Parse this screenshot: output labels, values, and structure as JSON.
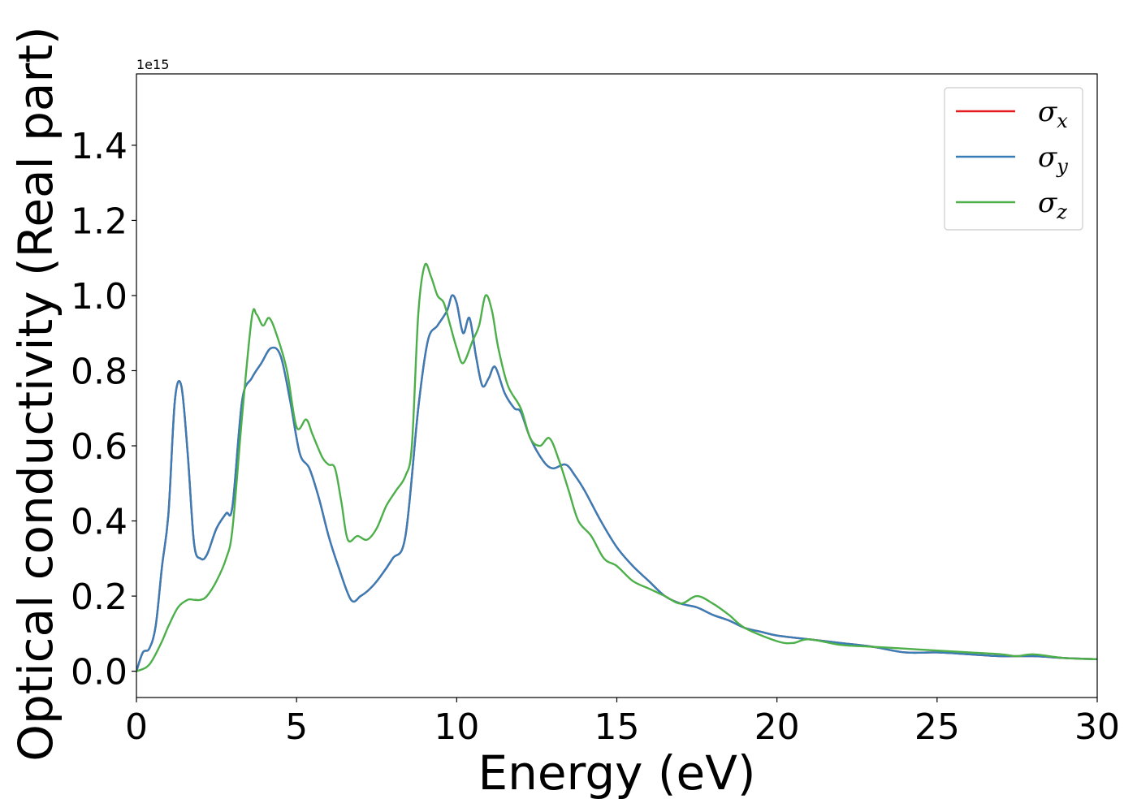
{
  "chart_data": {
    "type": "line",
    "xlabel": "Energy (eV)",
    "ylabel": "Optical conductivity (Real part)",
    "y_offset_label": "1e15",
    "xlim": [
      0,
      30
    ],
    "ylim": [
      -0.07,
      1.59
    ],
    "x_ticks": [
      0,
      5,
      10,
      15,
      20,
      25,
      30
    ],
    "x_tick_labels": [
      "0",
      "5",
      "10",
      "15",
      "20",
      "25",
      "30"
    ],
    "y_ticks": [
      0.0,
      0.2,
      0.4,
      0.6,
      0.8,
      1.0,
      1.2,
      1.4
    ],
    "y_tick_labels": [
      "0.0",
      "0.2",
      "0.4",
      "0.6",
      "0.8",
      "1.0",
      "1.2",
      "1.4"
    ],
    "grid": false,
    "legend_position": "top-right",
    "series": [
      {
        "name": "σx",
        "legend_symbol": "σ",
        "legend_subscript": "x",
        "color": "#e41a1c",
        "x": [
          0,
          0.2,
          0.4,
          0.6,
          0.8,
          1.0,
          1.2,
          1.4,
          1.6,
          1.8,
          2.0,
          2.2,
          2.5,
          2.8,
          3.0,
          3.3,
          3.6,
          3.9,
          4.2,
          4.5,
          4.8,
          5.1,
          5.4,
          5.7,
          6.0,
          6.3,
          6.7,
          7.0,
          7.3,
          7.6,
          8.0,
          8.4,
          8.8,
          9.1,
          9.4,
          9.7,
          9.85,
          10.0,
          10.2,
          10.4,
          10.6,
          10.8,
          11.0,
          11.2,
          11.5,
          11.8,
          12.0,
          12.3,
          12.7,
          13.0,
          13.4,
          13.7,
          14.0,
          14.5,
          15.0,
          15.5,
          16.0,
          16.5,
          17.0,
          17.5,
          18.0,
          18.5,
          19.0,
          19.5,
          20.0,
          21.0,
          22.0,
          23.0,
          24.0,
          25.0,
          26.0,
          27.0,
          28.0,
          29.0,
          30.0
        ],
        "values": [
          0.0,
          0.05,
          0.06,
          0.12,
          0.28,
          0.42,
          0.72,
          0.76,
          0.58,
          0.34,
          0.3,
          0.31,
          0.38,
          0.42,
          0.44,
          0.72,
          0.78,
          0.82,
          0.86,
          0.84,
          0.72,
          0.58,
          0.54,
          0.46,
          0.36,
          0.28,
          0.19,
          0.2,
          0.22,
          0.25,
          0.3,
          0.36,
          0.7,
          0.88,
          0.92,
          0.96,
          1.0,
          0.98,
          0.9,
          0.94,
          0.84,
          0.76,
          0.78,
          0.81,
          0.74,
          0.7,
          0.69,
          0.62,
          0.56,
          0.54,
          0.55,
          0.52,
          0.48,
          0.4,
          0.33,
          0.28,
          0.24,
          0.2,
          0.18,
          0.17,
          0.15,
          0.135,
          0.115,
          0.105,
          0.095,
          0.085,
          0.075,
          0.065,
          0.05,
          0.05,
          0.045,
          0.04,
          0.04,
          0.035,
          0.032
        ]
      },
      {
        "name": "σy",
        "legend_symbol": "σ",
        "legend_subscript": "y",
        "color": "#377eb8",
        "x": [
          0,
          0.2,
          0.4,
          0.6,
          0.8,
          1.0,
          1.2,
          1.4,
          1.6,
          1.8,
          2.0,
          2.2,
          2.5,
          2.8,
          3.0,
          3.3,
          3.6,
          3.9,
          4.2,
          4.5,
          4.8,
          5.1,
          5.4,
          5.7,
          6.0,
          6.3,
          6.7,
          7.0,
          7.3,
          7.6,
          8.0,
          8.4,
          8.8,
          9.1,
          9.4,
          9.7,
          9.85,
          10.0,
          10.2,
          10.4,
          10.6,
          10.8,
          11.0,
          11.2,
          11.5,
          11.8,
          12.0,
          12.3,
          12.7,
          13.0,
          13.4,
          13.7,
          14.0,
          14.5,
          15.0,
          15.5,
          16.0,
          16.5,
          17.0,
          17.5,
          18.0,
          18.5,
          19.0,
          19.5,
          20.0,
          21.0,
          22.0,
          23.0,
          24.0,
          25.0,
          26.0,
          27.0,
          28.0,
          29.0,
          30.0
        ],
        "values": [
          0.0,
          0.05,
          0.06,
          0.12,
          0.28,
          0.42,
          0.72,
          0.76,
          0.58,
          0.34,
          0.3,
          0.31,
          0.38,
          0.42,
          0.44,
          0.72,
          0.78,
          0.82,
          0.86,
          0.84,
          0.72,
          0.58,
          0.54,
          0.46,
          0.36,
          0.28,
          0.19,
          0.2,
          0.22,
          0.25,
          0.3,
          0.36,
          0.7,
          0.88,
          0.92,
          0.96,
          1.0,
          0.98,
          0.9,
          0.94,
          0.84,
          0.76,
          0.78,
          0.81,
          0.74,
          0.7,
          0.69,
          0.62,
          0.56,
          0.54,
          0.55,
          0.52,
          0.48,
          0.4,
          0.33,
          0.28,
          0.24,
          0.2,
          0.18,
          0.17,
          0.15,
          0.135,
          0.115,
          0.105,
          0.095,
          0.085,
          0.075,
          0.065,
          0.05,
          0.05,
          0.045,
          0.04,
          0.04,
          0.035,
          0.032
        ]
      },
      {
        "name": "σz",
        "legend_symbol": "σ",
        "legend_subscript": "z",
        "color": "#4daf4a",
        "x": [
          0,
          0.3,
          0.5,
          0.8,
          1.0,
          1.3,
          1.6,
          1.8,
          2.0,
          2.2,
          2.5,
          2.8,
          3.0,
          3.3,
          3.6,
          3.75,
          3.95,
          4.15,
          4.4,
          4.7,
          5.0,
          5.3,
          5.5,
          5.8,
          6.0,
          6.2,
          6.4,
          6.6,
          6.9,
          7.2,
          7.5,
          7.8,
          8.1,
          8.4,
          8.6,
          8.8,
          9.0,
          9.2,
          9.4,
          9.6,
          9.8,
          10.0,
          10.2,
          10.5,
          10.7,
          10.9,
          11.1,
          11.3,
          11.6,
          12.0,
          12.3,
          12.6,
          12.9,
          13.2,
          13.5,
          13.8,
          14.2,
          14.6,
          15.0,
          15.5,
          16.0,
          16.5,
          17.0,
          17.5,
          18.0,
          18.5,
          19.0,
          20.0,
          20.5,
          21.0,
          22.0,
          23.0,
          24.0,
          25.0,
          26.0,
          27.0,
          27.5,
          28.0,
          29.0,
          30.0
        ],
        "values": [
          0.0,
          0.01,
          0.03,
          0.08,
          0.12,
          0.17,
          0.19,
          0.19,
          0.19,
          0.2,
          0.24,
          0.3,
          0.38,
          0.68,
          0.94,
          0.95,
          0.92,
          0.94,
          0.89,
          0.8,
          0.65,
          0.67,
          0.63,
          0.57,
          0.55,
          0.54,
          0.45,
          0.35,
          0.36,
          0.35,
          0.38,
          0.44,
          0.48,
          0.52,
          0.6,
          0.95,
          1.08,
          1.05,
          1.0,
          0.98,
          0.92,
          0.86,
          0.82,
          0.88,
          0.92,
          1.0,
          0.96,
          0.86,
          0.76,
          0.7,
          0.62,
          0.6,
          0.62,
          0.56,
          0.48,
          0.4,
          0.36,
          0.3,
          0.28,
          0.24,
          0.22,
          0.2,
          0.18,
          0.2,
          0.18,
          0.15,
          0.115,
          0.08,
          0.075,
          0.085,
          0.07,
          0.065,
          0.06,
          0.055,
          0.05,
          0.045,
          0.04,
          0.045,
          0.035,
          0.032
        ]
      }
    ]
  }
}
